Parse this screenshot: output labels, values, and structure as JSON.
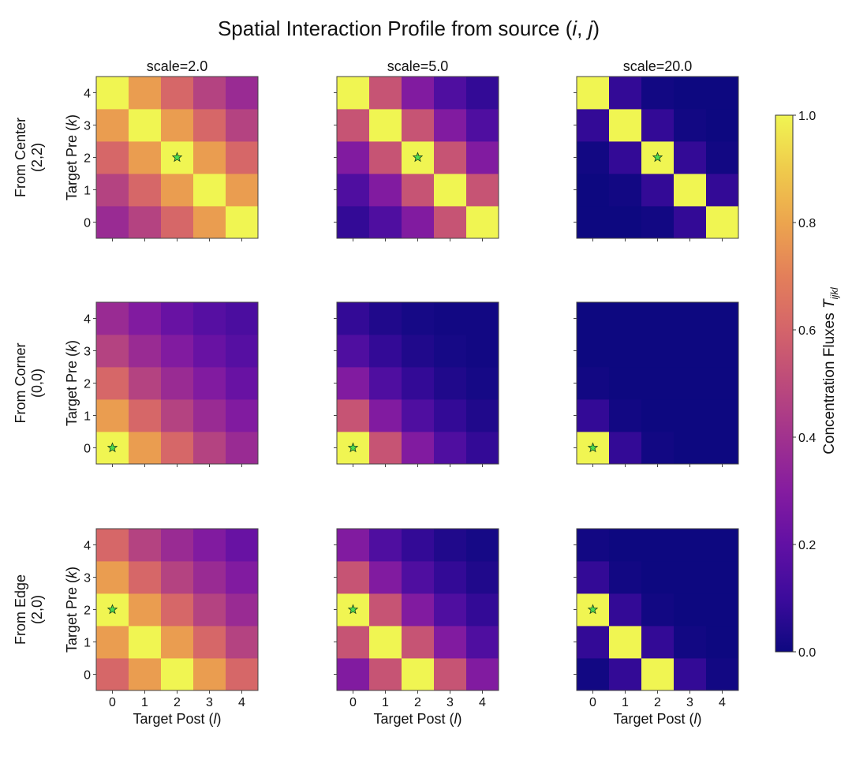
{
  "chart_data": {
    "type": "heatmap",
    "title": "Spatial Interaction Profile from source (i, j)",
    "title_parts": {
      "text": "Spatial Interaction Profile from source (",
      "i": "i",
      "sep": ", ",
      "j": "j",
      "close": ")"
    },
    "xlabel": {
      "text": "Target Post (",
      "var": "l",
      "close": ")"
    },
    "ylabel": {
      "text": "Target Pre (",
      "var": "k",
      "close": ")"
    },
    "x_ticks": [
      "0",
      "1",
      "2",
      "3",
      "4"
    ],
    "y_ticks": [
      "0",
      "1",
      "2",
      "3",
      "4"
    ],
    "columns": [
      "scale=2.0",
      "scale=5.0",
      "scale=20.0"
    ],
    "rows": [
      {
        "label_line1": "From Center",
        "label_line2": "(2,2)",
        "source_k": 2,
        "source_l": 2
      },
      {
        "label_line1": "From Corner",
        "label_line2": "(0,0)",
        "source_k": 0,
        "source_l": 0
      },
      {
        "label_line1": "From Edge",
        "label_line2": "(2,0)",
        "source_k": 2,
        "source_l": 0
      }
    ],
    "colormap": "plasma",
    "colorbar": {
      "label": "Concentration Fluxes ",
      "label_var": "T",
      "label_sub": "ijkl",
      "range": [
        0.0,
        1.0
      ],
      "ticks": [
        "0.0",
        "0.2",
        "0.4",
        "0.6",
        "0.8",
        "1.0"
      ]
    },
    "marker": {
      "shape": "star",
      "color": "#4cdc4c",
      "edge": "#1a3a1a"
    },
    "panels": [
      [
        {
          "scale": 2.0,
          "values_by_k": [
            [
              0.37,
              0.47,
              0.61,
              0.78,
              1.0
            ],
            [
              0.47,
              0.61,
              0.78,
              1.0,
              0.78
            ],
            [
              0.61,
              0.78,
              1.0,
              0.78,
              0.61
            ],
            [
              0.78,
              1.0,
              0.78,
              0.61,
              0.47
            ],
            [
              1.0,
              0.78,
              0.61,
              0.47,
              0.37
            ]
          ]
        },
        {
          "scale": 5.0,
          "values_by_k": [
            [
              0.08,
              0.15,
              0.29,
              0.54,
              1.0
            ],
            [
              0.15,
              0.29,
              0.54,
              1.0,
              0.54
            ],
            [
              0.29,
              0.54,
              1.0,
              0.54,
              0.29
            ],
            [
              0.54,
              1.0,
              0.54,
              0.29,
              0.15
            ],
            [
              1.0,
              0.54,
              0.29,
              0.15,
              0.08
            ]
          ]
        },
        {
          "scale": 20.0,
          "values_by_k": [
            [
              0.0,
              0.0,
              0.01,
              0.08,
              1.0
            ],
            [
              0.0,
              0.01,
              0.08,
              1.0,
              0.08
            ],
            [
              0.01,
              0.08,
              1.0,
              0.08,
              0.01
            ],
            [
              0.08,
              1.0,
              0.08,
              0.01,
              0.0
            ],
            [
              1.0,
              0.08,
              0.01,
              0.0,
              0.0
            ]
          ]
        }
      ],
      [
        {
          "scale": 2.0,
          "values_by_k": [
            [
              1.0,
              0.78,
              0.61,
              0.47,
              0.37
            ],
            [
              0.78,
              0.61,
              0.47,
              0.37,
              0.29
            ],
            [
              0.61,
              0.47,
              0.37,
              0.29,
              0.22
            ],
            [
              0.47,
              0.37,
              0.29,
              0.22,
              0.17
            ],
            [
              0.37,
              0.29,
              0.22,
              0.17,
              0.14
            ]
          ]
        },
        {
          "scale": 5.0,
          "values_by_k": [
            [
              1.0,
              0.54,
              0.29,
              0.15,
              0.08
            ],
            [
              0.54,
              0.29,
              0.15,
              0.08,
              0.04
            ],
            [
              0.29,
              0.15,
              0.08,
              0.04,
              0.02
            ],
            [
              0.15,
              0.08,
              0.04,
              0.02,
              0.01
            ],
            [
              0.08,
              0.04,
              0.02,
              0.01,
              0.01
            ]
          ]
        },
        {
          "scale": 20.0,
          "values_by_k": [
            [
              1.0,
              0.08,
              0.01,
              0.0,
              0.0
            ],
            [
              0.08,
              0.01,
              0.0,
              0.0,
              0.0
            ],
            [
              0.01,
              0.0,
              0.0,
              0.0,
              0.0
            ],
            [
              0.0,
              0.0,
              0.0,
              0.0,
              0.0
            ],
            [
              0.0,
              0.0,
              0.0,
              0.0,
              0.0
            ]
          ]
        }
      ],
      [
        {
          "scale": 2.0,
          "values_by_k": [
            [
              0.61,
              0.78,
              1.0,
              0.78,
              0.61
            ],
            [
              0.78,
              1.0,
              0.78,
              0.61,
              0.47
            ],
            [
              1.0,
              0.78,
              0.61,
              0.47,
              0.37
            ],
            [
              0.78,
              0.61,
              0.47,
              0.37,
              0.29
            ],
            [
              0.61,
              0.47,
              0.37,
              0.29,
              0.22
            ]
          ]
        },
        {
          "scale": 5.0,
          "values_by_k": [
            [
              0.29,
              0.54,
              1.0,
              0.54,
              0.29
            ],
            [
              0.54,
              1.0,
              0.54,
              0.29,
              0.15
            ],
            [
              1.0,
              0.54,
              0.29,
              0.15,
              0.08
            ],
            [
              0.54,
              0.29,
              0.15,
              0.08,
              0.04
            ],
            [
              0.29,
              0.15,
              0.08,
              0.04,
              0.02
            ]
          ]
        },
        {
          "scale": 20.0,
          "values_by_k": [
            [
              0.01,
              0.08,
              1.0,
              0.08,
              0.01
            ],
            [
              0.08,
              1.0,
              0.08,
              0.01,
              0.0
            ],
            [
              1.0,
              0.08,
              0.01,
              0.0,
              0.0
            ],
            [
              0.08,
              0.01,
              0.0,
              0.0,
              0.0
            ],
            [
              0.01,
              0.0,
              0.0,
              0.0,
              0.0
            ]
          ]
        }
      ]
    ]
  }
}
